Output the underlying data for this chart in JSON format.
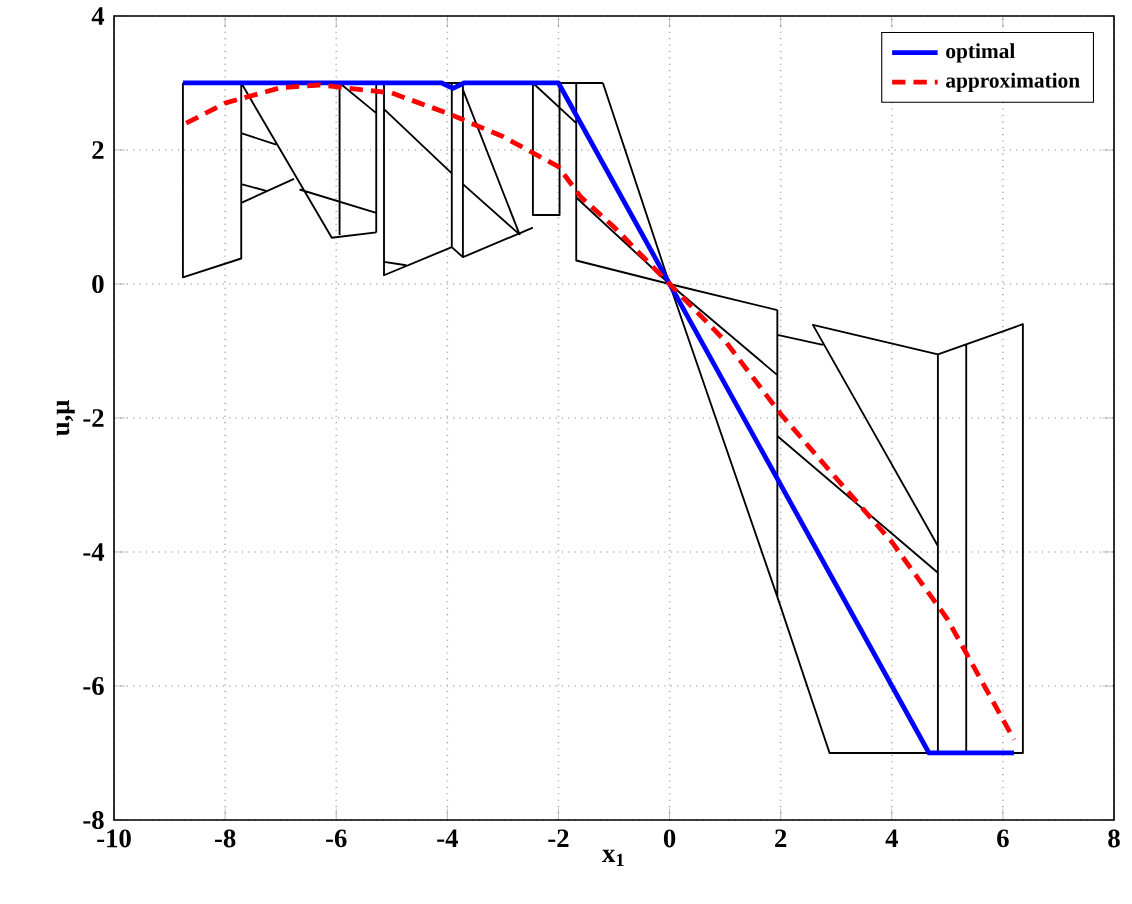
{
  "chart_data": {
    "type": "line",
    "xlabel": "x$_{1}$",
    "ylabel": "u,μ",
    "xlim": [
      -10,
      8
    ],
    "ylim": [
      -8,
      4
    ],
    "xticks": [
      -10,
      -8,
      -6,
      -4,
      -2,
      0,
      2,
      4,
      6,
      8
    ],
    "yticks": [
      -8,
      -6,
      -4,
      -2,
      0,
      2,
      4
    ],
    "grid": true,
    "legend": "top right",
    "marker": "none",
    "series": [
      {
        "color": "#000000",
        "x": [
          -8.76,
          -8.76,
          -7.71,
          -7.71,
          null,
          -8.76,
          -1.2,
          null,
          -7.71,
          -6.08,
          -5.28,
          null,
          -7.71,
          -7.08,
          null,
          -7.71,
          -7.26,
          null,
          -7.71,
          -6.76,
          null,
          -6.66,
          -5.28,
          null,
          -5.94,
          -5.94,
          null,
          -5.94,
          -5.28,
          null,
          -5.28,
          -5.28,
          null,
          -5.14,
          -5.14,
          -3.92,
          -3.72,
          -2.46,
          null,
          -5.14,
          -4.74,
          null,
          -5.14,
          -3.92,
          null,
          -3.92,
          -3.92,
          null,
          -3.72,
          -3.72,
          null,
          -3.72,
          -2.7,
          -3.72,
          null,
          -2.46,
          -2.46,
          -1.98,
          -1.98,
          null,
          -2.46,
          -1.68,
          null,
          -1.68,
          -1.68,
          0,
          null,
          -1.2,
          0,
          null,
          -1.68,
          0,
          null,
          1.94,
          0,
          1.94,
          2.88,
          6.36,
          6.36,
          4.83,
          2.58,
          4.83,
          null,
          1.94,
          1.94,
          null,
          4.83,
          4.83,
          null,
          5.34,
          5.34,
          null,
          1.94,
          2.76,
          null,
          0,
          1.94,
          null,
          1.94,
          4.83
        ],
        "values": [
          3,
          0.1,
          0.38,
          3,
          null,
          3,
          3,
          null,
          3,
          0.69,
          0.77,
          null,
          2.25,
          2.08,
          null,
          1.49,
          1.39,
          null,
          1.21,
          1.57,
          null,
          1.41,
          1.06,
          null,
          3,
          0.73,
          null,
          3,
          2.55,
          null,
          3,
          0.77,
          null,
          3,
          0.13,
          0.55,
          0.4,
          0.84,
          null,
          0.33,
          0.28,
          null,
          2.61,
          1.65,
          null,
          3,
          0.55,
          null,
          3,
          0.4,
          null,
          2.9,
          0.74,
          1.49,
          null,
          3,
          1.03,
          1.03,
          3,
          null,
          3,
          2.4,
          null,
          3,
          0.35,
          0,
          null,
          3,
          0,
          null,
          1.29,
          0,
          null,
          -0.39,
          0,
          -4.67,
          -7,
          -7,
          -0.6,
          -1.05,
          -0.61,
          -3.91,
          null,
          -0.39,
          -4.67,
          null,
          -1.05,
          -7,
          null,
          -0.9,
          -7,
          null,
          -0.76,
          -0.91,
          null,
          0,
          -1.36,
          null,
          -2.27,
          -4.31
        ]
      },
      {
        "name": "optimal",
        "color": "#0000ff",
        "line_style": "solid",
        "x": [
          -8.76,
          -4.1,
          -3.9,
          -3.7,
          -2,
          4.67,
          6.2
        ],
        "values": [
          3,
          3,
          2.92,
          3,
          3,
          -7,
          -7
        ]
      },
      {
        "name": "approximation",
        "color": "#ff0000",
        "line_style": "dashed",
        "x": [
          -8.7,
          -8,
          -7,
          -6.3,
          -5,
          -4,
          -3,
          -2,
          -1.6,
          -1,
          0,
          1,
          2,
          3,
          4,
          5,
          6.2
        ],
        "values": [
          2.4,
          2.7,
          2.93,
          2.97,
          2.85,
          2.55,
          2.2,
          1.75,
          1.3,
          0.85,
          0,
          -0.85,
          -1.94,
          -2.9,
          -3.85,
          -5.0,
          -6.8
        ]
      }
    ]
  }
}
